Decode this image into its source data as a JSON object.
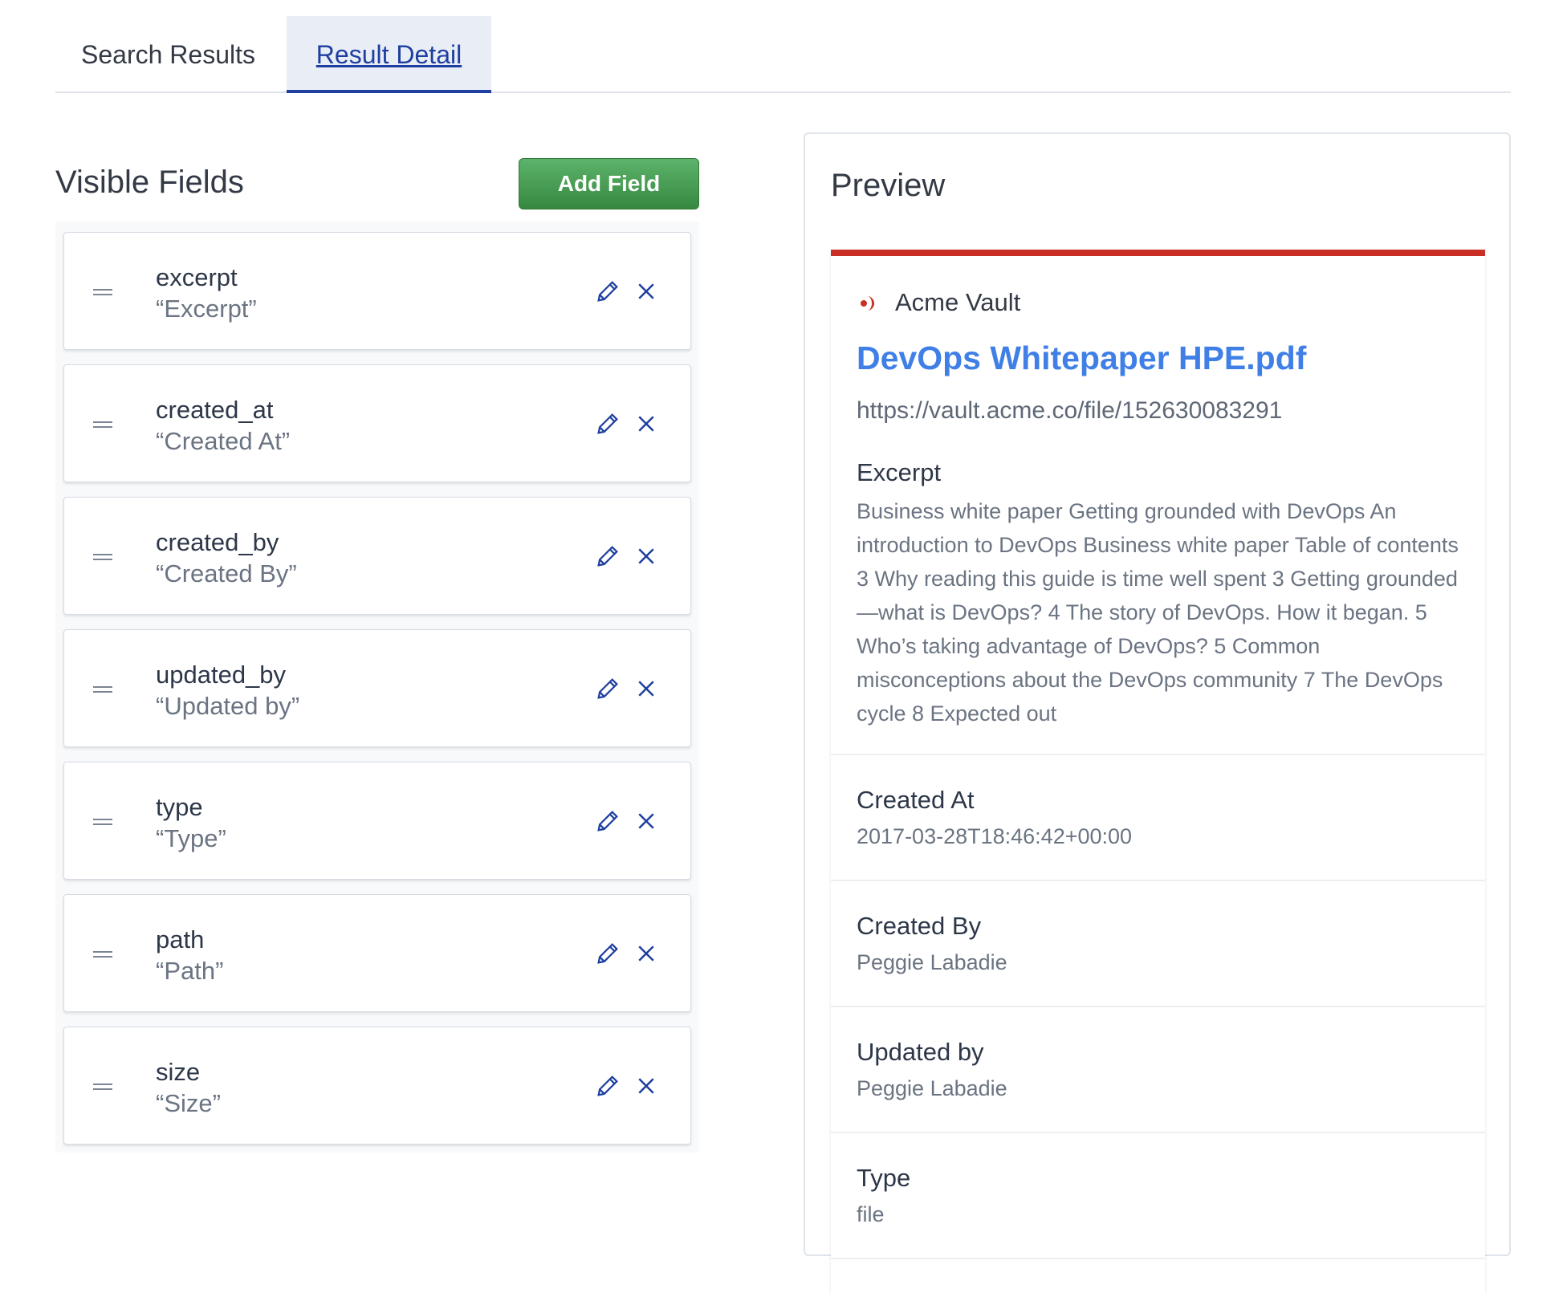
{
  "tabs": [
    {
      "label": "Search Results",
      "active": false
    },
    {
      "label": "Result Detail",
      "active": true
    }
  ],
  "visible_fields": {
    "title": "Visible Fields",
    "add_label": "Add Field",
    "items": [
      {
        "name": "excerpt",
        "label": "“Excerpt”"
      },
      {
        "name": "created_at",
        "label": "“Created At”"
      },
      {
        "name": "created_by",
        "label": "“Created By”"
      },
      {
        "name": "updated_by",
        "label": "“Updated by”"
      },
      {
        "name": "type",
        "label": "“Type”"
      },
      {
        "name": "path",
        "label": "“Path”"
      },
      {
        "name": "size",
        "label": "“Size”"
      }
    ]
  },
  "preview": {
    "title": "Preview",
    "source": "Acme Vault",
    "result_title": "DevOps Whitepaper HPE.pdf",
    "url": "https://vault.acme.co/file/152630083291",
    "excerpt_label": "Excerpt",
    "excerpt": "Business white paper Getting grounded with DevOps An introduction to DevOps Business white paper Table of contents 3 Why reading this guide is time well spent 3 Getting grounded—what is DevOps? 4 The story of DevOps. How it began. 5 Who’s taking advantage of DevOps? 5 Common misconceptions about the DevOps community 7 The DevOps cycle 8 Expected out",
    "fields": [
      {
        "label": "Created At",
        "value": "2017-03-28T18:46:42+00:00"
      },
      {
        "label": "Created By",
        "value": "Peggie Labadie"
      },
      {
        "label": "Updated by",
        "value": "Peggie Labadie"
      },
      {
        "label": "Type",
        "value": "file"
      }
    ]
  },
  "colors": {
    "accent": "#1e3fa0",
    "add_button": "#4a9f56",
    "link": "#3f7fe6",
    "source_bar": "#c92f24"
  }
}
